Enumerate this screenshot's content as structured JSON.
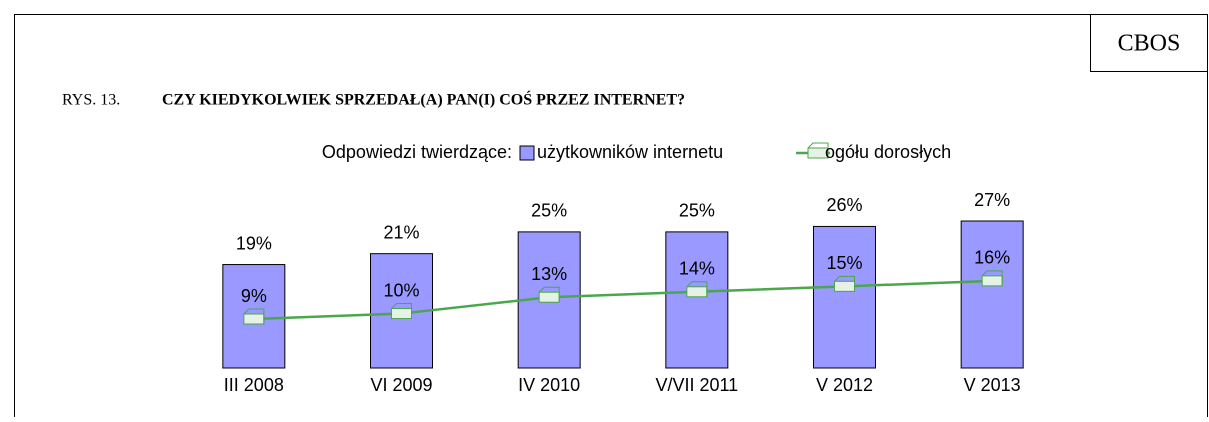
{
  "chart_data": {
    "type": "bar-line",
    "logo": "CBOS",
    "figure_label": "RYS. 13.",
    "title": "CZY KIEDYKOLWIEK SPRZEDAŁ(A) PAN(I) COŚ PRZEZ INTERNET?",
    "legend_title": "Odpowiedzi twierdzące:",
    "categories": [
      "III 2008",
      "VI 2009",
      "IV 2010",
      "V/VII 2011",
      "V 2012",
      "V 2013"
    ],
    "series": [
      {
        "name": "użytkowników internetu",
        "type": "bar",
        "color": "#9999ff",
        "values": [
          19,
          21,
          25,
          25,
          26,
          27
        ],
        "value_labels": [
          "19%",
          "21%",
          "25%",
          "25%",
          "26%",
          "27%"
        ]
      },
      {
        "name": "ogółu dorosłych",
        "type": "line",
        "color": "#4ca64c",
        "values": [
          9,
          10,
          13,
          14,
          15,
          16
        ],
        "value_labels": [
          "9%",
          "10%",
          "13%",
          "14%",
          "15%",
          "16%"
        ]
      }
    ]
  }
}
